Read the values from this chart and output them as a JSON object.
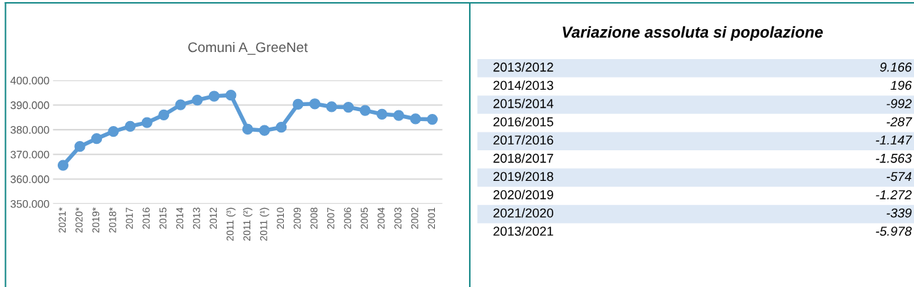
{
  "chart_data": [
    {
      "type": "line",
      "title": "Comuni A_GreeNet",
      "categories": [
        "2021*",
        "2020*",
        "2019*",
        "2018*",
        "2017",
        "2016",
        "2015",
        "2014",
        "2013",
        "2012",
        "2011 (³)",
        "2011 (²)",
        "2011 (¹)",
        "2010",
        "2009",
        "2008",
        "2007",
        "2006",
        "2005",
        "2004",
        "2003",
        "2002",
        "2001"
      ],
      "series": [
        {
          "color": "#5b9bd5",
          "values": [
            365600,
            373200,
            376400,
            379300,
            381400,
            382900,
            386000,
            390100,
            392000,
            393600,
            394000,
            380200,
            379700,
            381000,
            390300,
            390500,
            389300,
            389100,
            387800,
            386300,
            385800,
            384400,
            384200
          ]
        }
      ],
      "ylim": [
        350000,
        400000
      ],
      "yticks": [
        {
          "value": 350000,
          "label": "350.000"
        },
        {
          "value": 360000,
          "label": "360.000"
        },
        {
          "value": 370000,
          "label": "370.000"
        },
        {
          "value": 380000,
          "label": "380.000"
        },
        {
          "value": 390000,
          "label": "390.000"
        },
        {
          "value": 400000,
          "label": "400.000"
        }
      ],
      "grid": "y",
      "legend": false,
      "marker": "circle",
      "line_style": "solid"
    },
    {
      "type": "other",
      "title": "Variazione assoluta si popolazione",
      "annotations": [
        "2013/2012",
        "9.166",
        "2014/2013",
        "196",
        "2015/2014",
        "-992",
        "2016/2015",
        "-287",
        "2017/2016",
        "-1.147",
        "2018/2017",
        "-1.563",
        "2019/2018",
        "-574",
        "2020/2019",
        "-1.272",
        "2021/2020",
        "-339",
        "2013/2021",
        "-5.978"
      ]
    }
  ]
}
